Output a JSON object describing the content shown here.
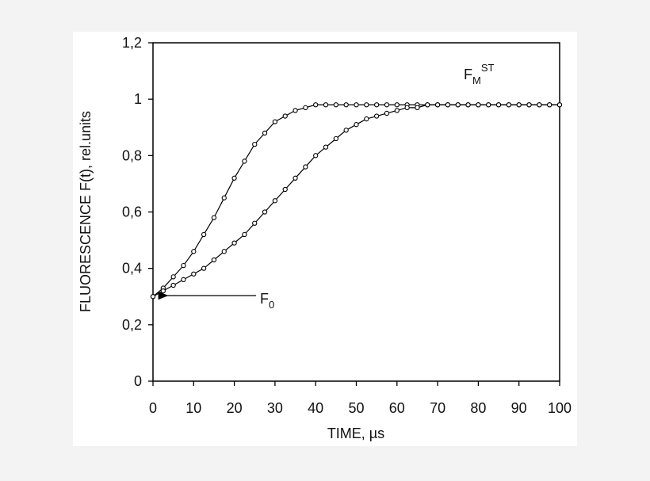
{
  "chart_data": {
    "type": "scatter",
    "x_label": "TIME, µs",
    "y_label": "FLUORESCENCE F(t), rel.units",
    "x": [
      0,
      2.5,
      5,
      7.5,
      10,
      12.5,
      15,
      17.5,
      20,
      22.5,
      25,
      27.5,
      30,
      32.5,
      35,
      37.5,
      40,
      42.5,
      45,
      47.5,
      50,
      52.5,
      55,
      57.5,
      60,
      62.5,
      65,
      67.5,
      70,
      72.5,
      75,
      77.5,
      80,
      82.5,
      85,
      87.5,
      90,
      92.5,
      95,
      97.5,
      100
    ],
    "series": [
      {
        "color": "#000000",
        "values": [
          0.3,
          0.33,
          0.37,
          0.41,
          0.46,
          0.52,
          0.58,
          0.65,
          0.72,
          0.78,
          0.84,
          0.88,
          0.92,
          0.94,
          0.96,
          0.97,
          0.98,
          0.98,
          0.98,
          0.98,
          0.98,
          0.98,
          0.98,
          0.98,
          0.98,
          0.98,
          0.98,
          0.98,
          0.98,
          0.98,
          0.98,
          0.98,
          0.98,
          0.98,
          0.98,
          0.98,
          0.98,
          0.98,
          0.98,
          0.98,
          0.98
        ]
      },
      {
        "color": "#000000",
        "values": [
          0.3,
          0.32,
          0.34,
          0.36,
          0.38,
          0.4,
          0.43,
          0.46,
          0.49,
          0.52,
          0.56,
          0.6,
          0.64,
          0.68,
          0.72,
          0.76,
          0.8,
          0.83,
          0.86,
          0.89,
          0.91,
          0.93,
          0.94,
          0.95,
          0.96,
          0.97,
          0.97,
          0.98,
          0.98,
          0.98,
          0.98,
          0.98,
          0.98,
          0.98,
          0.98,
          0.98,
          0.98,
          0.98,
          0.98,
          0.98,
          0.98
        ]
      }
    ],
    "annotations": [
      {
        "text": "F",
        "subscript": "0"
      },
      {
        "text": "F",
        "subscript": "M",
        "superscript": "ST"
      }
    ],
    "xlim": [
      0,
      100
    ],
    "xticks": [
      0,
      10,
      20,
      30,
      40,
      50,
      60,
      70,
      80,
      90,
      100
    ],
    "ylim": [
      0,
      1.2
    ],
    "yticks": [
      0,
      {
        "value": 0.2,
        "label": "0,2"
      },
      {
        "value": 0.4,
        "label": "0,4"
      },
      {
        "value": 0.6,
        "label": "0,6"
      },
      {
        "value": 0.8,
        "label": "0,8"
      },
      1,
      {
        "value": 1.2,
        "label": "1,2"
      }
    ],
    "grid": false
  }
}
